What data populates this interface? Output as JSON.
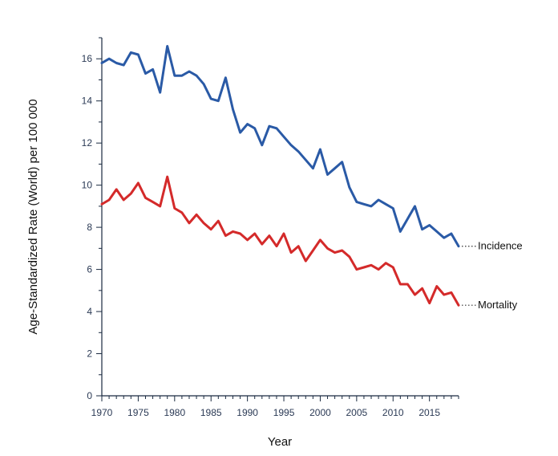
{
  "chart_data": {
    "type": "line",
    "title": "",
    "xlabel": "Year",
    "ylabel": "Age-Standardized Rate (World) per 100 000",
    "xlim": [
      1970,
      2019
    ],
    "ylim": [
      0,
      17
    ],
    "x_ticks": [
      1970,
      1975,
      1980,
      1985,
      1990,
      1995,
      2000,
      2005,
      2010,
      2015
    ],
    "y_ticks": [
      0,
      2,
      4,
      6,
      8,
      10,
      12,
      14,
      16
    ],
    "grid": false,
    "x": [
      1970,
      1971,
      1972,
      1973,
      1974,
      1975,
      1976,
      1977,
      1978,
      1979,
      1980,
      1981,
      1982,
      1983,
      1984,
      1985,
      1986,
      1987,
      1988,
      1989,
      1990,
      1991,
      1992,
      1993,
      1994,
      1995,
      1996,
      1997,
      1998,
      1999,
      2000,
      2001,
      2002,
      2003,
      2004,
      2005,
      2006,
      2007,
      2008,
      2009,
      2010,
      2011,
      2012,
      2013,
      2014,
      2015,
      2016,
      2017,
      2018,
      2019
    ],
    "series": [
      {
        "name": "Incidence",
        "color": "#2a5aa6",
        "values": [
          15.8,
          16.0,
          15.8,
          15.7,
          16.3,
          16.2,
          15.3,
          15.5,
          14.4,
          16.6,
          15.2,
          15.2,
          15.4,
          15.2,
          14.8,
          14.1,
          14.0,
          15.1,
          13.6,
          12.5,
          12.9,
          12.7,
          11.9,
          12.8,
          12.7,
          12.3,
          11.9,
          11.6,
          11.2,
          10.8,
          11.7,
          10.5,
          10.8,
          11.1,
          9.9,
          9.2,
          9.1,
          9.0,
          9.3,
          9.1,
          8.9,
          7.8,
          8.4,
          9.0,
          7.9,
          8.1,
          7.8,
          7.5,
          7.7,
          7.1
        ]
      },
      {
        "name": "Mortality",
        "color": "#d42a2a",
        "values": [
          9.1,
          9.3,
          9.8,
          9.3,
          9.6,
          10.1,
          9.4,
          9.2,
          9.0,
          10.4,
          8.9,
          8.7,
          8.2,
          8.6,
          8.2,
          7.9,
          8.3,
          7.6,
          7.8,
          7.7,
          7.4,
          7.7,
          7.2,
          7.6,
          7.1,
          7.7,
          6.8,
          7.1,
          6.4,
          6.9,
          7.4,
          7.0,
          6.8,
          6.9,
          6.6,
          6.0,
          6.1,
          6.2,
          6.0,
          6.3,
          6.1,
          5.3,
          5.3,
          4.8,
          5.1,
          4.4,
          5.2,
          4.8,
          4.9,
          4.3
        ]
      }
    ],
    "annotations": [
      {
        "series": "Incidence",
        "text": "Incidence",
        "style": "dotted leader line"
      },
      {
        "series": "Mortality",
        "text": "Mortality",
        "style": "dotted leader line"
      }
    ]
  }
}
